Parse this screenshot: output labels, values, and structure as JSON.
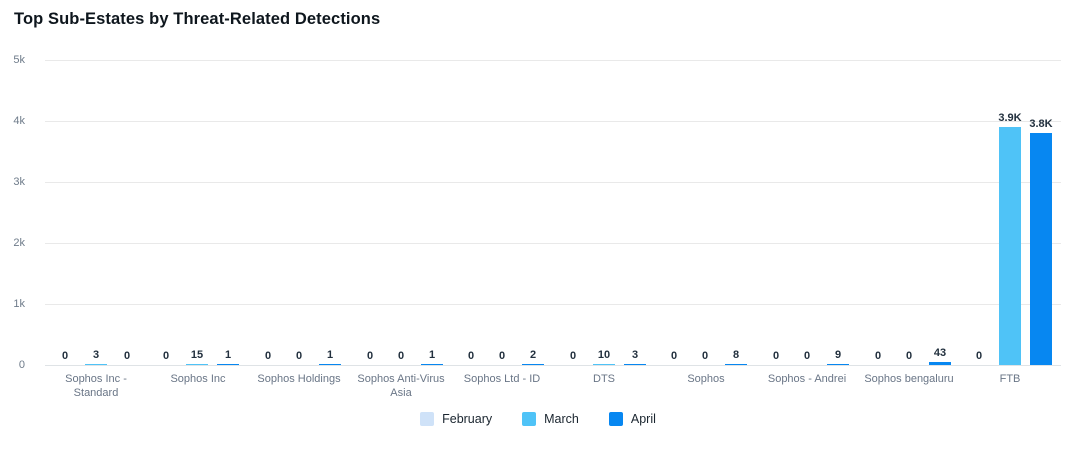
{
  "title": "Top Sub-Estates by Threat-Related Detections",
  "colors": {
    "february": "#cfe2f8",
    "march": "#4fc3f7",
    "april": "#0787f1",
    "grid": "#e9e9e9",
    "tick_text": "#6e7b8a",
    "category_text": "#697586",
    "value_text": "#22303e",
    "title_text": "#0e161d"
  },
  "chart_data": {
    "type": "bar",
    "title": "Top Sub-Estates by Threat-Related Detections",
    "categories": [
      "Sophos Inc - Standard",
      "Sophos Inc",
      "Sophos Holdings",
      "Sophos Anti-Virus Asia",
      "Sophos Ltd - ID",
      "DTS",
      "Sophos",
      "Sophos - Andrei",
      "Sophos bengaluru",
      "FTB"
    ],
    "series": [
      {
        "name": "February",
        "color_key": "february",
        "values": [
          0,
          0,
          0,
          0,
          0,
          0,
          0,
          0,
          0,
          0
        ],
        "labels": [
          "0",
          "0",
          "0",
          "0",
          "0",
          "0",
          "0",
          "0",
          "0",
          "0"
        ]
      },
      {
        "name": "March",
        "color_key": "march",
        "values": [
          3,
          15,
          0,
          0,
          0,
          10,
          0,
          0,
          0,
          3900
        ],
        "labels": [
          "3",
          "15",
          "0",
          "0",
          "0",
          "10",
          "0",
          "0",
          "0",
          "3.9K"
        ]
      },
      {
        "name": "April",
        "color_key": "april",
        "values": [
          0,
          1,
          1,
          1,
          2,
          3,
          8,
          9,
          43,
          3800
        ],
        "labels": [
          "0",
          "1",
          "1",
          "1",
          "2",
          "3",
          "8",
          "9",
          "43",
          "3.8K"
        ]
      }
    ],
    "ylim": [
      0,
      5000
    ],
    "y_ticks": [
      "5k",
      "4k",
      "3k",
      "2k",
      "1k",
      "0"
    ],
    "grid": true,
    "legend_position": "bottom",
    "xlabel": "",
    "ylabel": ""
  },
  "legend": {
    "items": [
      {
        "label": "February",
        "color_key": "february"
      },
      {
        "label": "March",
        "color_key": "march"
      },
      {
        "label": "April",
        "color_key": "april"
      }
    ]
  }
}
